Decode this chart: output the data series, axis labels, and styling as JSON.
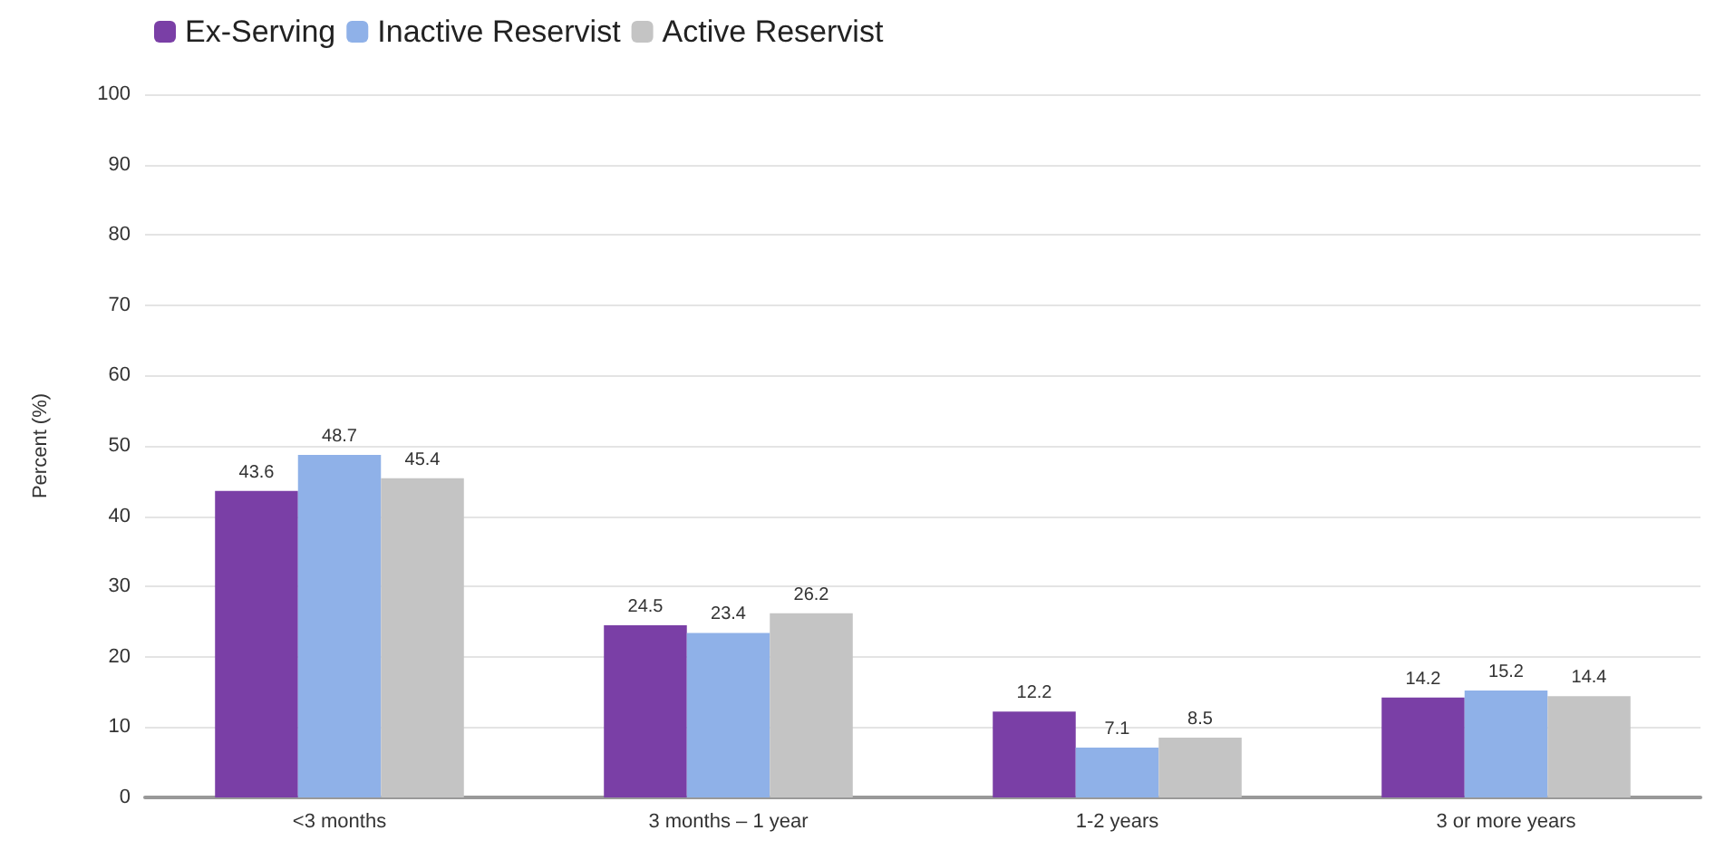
{
  "chart_data": {
    "type": "bar",
    "ylabel": "Percent (%)",
    "categories": [
      "<3 months",
      "3 months – 1 year",
      "1-2 years",
      "3 or more years"
    ],
    "series": [
      {
        "name": "Ex-Serving",
        "color": "#7a3fa6",
        "values": [
          43.6,
          24.5,
          12.2,
          14.2
        ]
      },
      {
        "name": "Inactive Reservist",
        "color": "#8fb1e8",
        "values": [
          48.7,
          23.4,
          7.1,
          15.2
        ]
      },
      {
        "name": "Active Reservist",
        "color": "#c4c4c4",
        "values": [
          45.4,
          26.2,
          8.5,
          14.4
        ]
      }
    ],
    "ylim": [
      0,
      100
    ],
    "yticks": [
      0,
      10,
      20,
      30,
      40,
      50,
      60,
      70,
      80,
      90,
      100
    ],
    "grid": "y",
    "legend": "top left",
    "data_labels": true
  }
}
